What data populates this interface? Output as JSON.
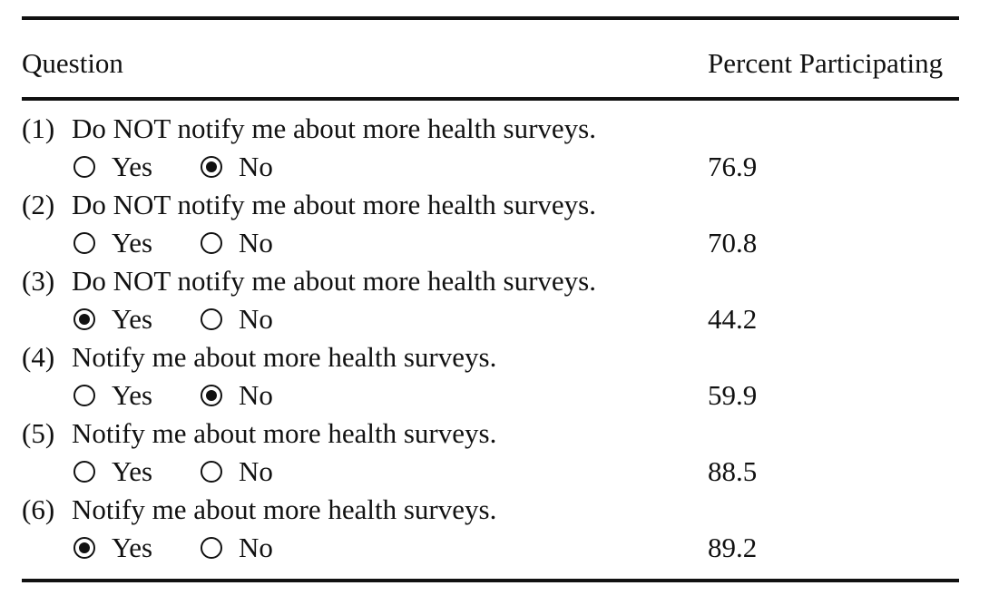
{
  "header": {
    "question_label": "Question",
    "percent_label": "Percent Participating"
  },
  "rows": [
    {
      "number": "(1)",
      "text": "Do NOT notify me about more health surveys.",
      "yes_label": "Yes",
      "no_label": "No",
      "selected": "no",
      "percent": "76.9"
    },
    {
      "number": "(2)",
      "text": "Do NOT notify me about more health surveys.",
      "yes_label": "Yes",
      "no_label": "No",
      "selected": "none",
      "percent": "70.8"
    },
    {
      "number": "(3)",
      "text": "Do NOT notify me about more health surveys.",
      "yes_label": "Yes",
      "no_label": "No",
      "selected": "yes",
      "percent": "44.2"
    },
    {
      "number": "(4)",
      "text": "Notify me about more health surveys.",
      "yes_label": "Yes",
      "no_label": "No",
      "selected": "no",
      "percent": "59.9"
    },
    {
      "number": "(5)",
      "text": "Notify me about more health surveys.",
      "yes_label": "Yes",
      "no_label": "No",
      "selected": "none",
      "percent": "88.5"
    },
    {
      "number": "(6)",
      "text": "Notify me about more health surveys.",
      "yes_label": "Yes",
      "no_label": "No",
      "selected": "yes",
      "percent": "89.2"
    }
  ]
}
